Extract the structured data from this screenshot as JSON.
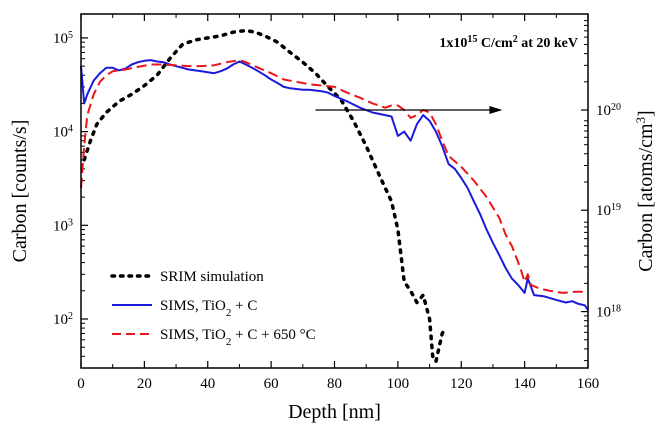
{
  "chart_data": {
    "type": "line",
    "xlabel": "Depth [nm]",
    "ylabel_left": "Carbon [counts/s]",
    "ylabel_left_parts": {
      "main": "Carbon [counts/s]"
    },
    "ylabel_right_parts": {
      "pre": "Carbon [atoms/cm",
      "sup": "3",
      "post": "]"
    },
    "annotation_parts": {
      "pre": "1x10",
      "sup1": "15",
      "mid": " C/cm",
      "sup2": "2",
      "post": " at 20 keV"
    },
    "xlim": [
      0,
      160
    ],
    "ylim_left": [
      30,
      180000
    ],
    "y_scale": "log",
    "x_ticks": [
      0,
      20,
      40,
      60,
      80,
      100,
      120,
      140,
      160
    ],
    "x_tick_labels": [
      "0",
      "20",
      "40",
      "60",
      "80",
      "100",
      "120",
      "140",
      "160"
    ],
    "y_left_ticks": [
      {
        "value": 100,
        "base": "10",
        "exp": "2"
      },
      {
        "value": 1000,
        "base": "10",
        "exp": "3"
      },
      {
        "value": 10000,
        "base": "10",
        "exp": "4"
      },
      {
        "value": 100000,
        "base": "10",
        "exp": "5"
      }
    ],
    "y_right_ticks": [
      {
        "value": 120,
        "base": "10",
        "exp": "18"
      },
      {
        "value": 1450,
        "base": "10",
        "exp": "19"
      },
      {
        "value": 17000,
        "base": "10",
        "exp": "20"
      }
    ],
    "arrow": {
      "x_from": 74,
      "x_to": 133,
      "y": 17000
    },
    "legend_position": "bottom-left",
    "series": [
      {
        "key": "srim",
        "legend": {
          "pre": "SRIM simulation"
        },
        "color": "#000000",
        "style": "dotted",
        "points": [
          [
            1,
            5000
          ],
          [
            3,
            8000
          ],
          [
            5,
            12000
          ],
          [
            8,
            16000
          ],
          [
            12,
            21000
          ],
          [
            16,
            25000
          ],
          [
            20,
            31000
          ],
          [
            24,
            40000
          ],
          [
            28,
            60000
          ],
          [
            32,
            85000
          ],
          [
            36,
            95000
          ],
          [
            40,
            100000
          ],
          [
            44,
            105000
          ],
          [
            48,
            115000
          ],
          [
            52,
            120000
          ],
          [
            55,
            115000
          ],
          [
            58,
            105000
          ],
          [
            62,
            90000
          ],
          [
            66,
            70000
          ],
          [
            70,
            55000
          ],
          [
            74,
            42000
          ],
          [
            78,
            30000
          ],
          [
            82,
            22000
          ],
          [
            86,
            13000
          ],
          [
            90,
            7000
          ],
          [
            94,
            3500
          ],
          [
            98,
            1800
          ],
          [
            100,
            900
          ],
          [
            102,
            250
          ],
          [
            104,
            200
          ],
          [
            106,
            150
          ],
          [
            108,
            180
          ],
          [
            110,
            100
          ],
          [
            111,
            40
          ],
          [
            112,
            35
          ],
          [
            113,
            50
          ],
          [
            114,
            70
          ],
          [
            115,
            80
          ]
        ]
      },
      {
        "key": "sims",
        "legend": {
          "pre": "SIMS, TiO",
          "sub": "2",
          "post": " + C"
        },
        "color": "#1a1adc",
        "style": "solid",
        "points": [
          [
            0,
            50000
          ],
          [
            1,
            20000
          ],
          [
            2,
            25000
          ],
          [
            4,
            35000
          ],
          [
            6,
            42000
          ],
          [
            8,
            48000
          ],
          [
            10,
            48000
          ],
          [
            12,
            45000
          ],
          [
            14,
            47000
          ],
          [
            16,
            52000
          ],
          [
            18,
            55000
          ],
          [
            20,
            57000
          ],
          [
            22,
            58000
          ],
          [
            24,
            56000
          ],
          [
            26,
            55000
          ],
          [
            28,
            52000
          ],
          [
            30,
            50000
          ],
          [
            32,
            48000
          ],
          [
            34,
            46000
          ],
          [
            36,
            45000
          ],
          [
            38,
            44000
          ],
          [
            40,
            43000
          ],
          [
            42,
            42000
          ],
          [
            44,
            44000
          ],
          [
            46,
            47000
          ],
          [
            48,
            52000
          ],
          [
            50,
            56000
          ],
          [
            52,
            52000
          ],
          [
            54,
            48000
          ],
          [
            56,
            44000
          ],
          [
            58,
            40000
          ],
          [
            60,
            36000
          ],
          [
            62,
            33000
          ],
          [
            64,
            30000
          ],
          [
            66,
            29000
          ],
          [
            68,
            28500
          ],
          [
            70,
            28000
          ],
          [
            72,
            28000
          ],
          [
            74,
            27500
          ],
          [
            76,
            27000
          ],
          [
            78,
            26000
          ],
          [
            80,
            24000
          ],
          [
            84,
            21000
          ],
          [
            88,
            18000
          ],
          [
            92,
            16000
          ],
          [
            96,
            15000
          ],
          [
            98,
            14500
          ],
          [
            100,
            9000
          ],
          [
            102,
            10000
          ],
          [
            104,
            8000
          ],
          [
            106,
            12000
          ],
          [
            108,
            15000
          ],
          [
            110,
            13000
          ],
          [
            112,
            10000
          ],
          [
            114,
            7000
          ],
          [
            116,
            4500
          ],
          [
            118,
            4000
          ],
          [
            120,
            3200
          ],
          [
            122,
            2500
          ],
          [
            124,
            1800
          ],
          [
            126,
            1300
          ],
          [
            128,
            900
          ],
          [
            130,
            650
          ],
          [
            132,
            480
          ],
          [
            134,
            350
          ],
          [
            136,
            270
          ],
          [
            138,
            230
          ],
          [
            140,
            190
          ],
          [
            141,
            270
          ],
          [
            142,
            220
          ],
          [
            143,
            180
          ],
          [
            146,
            175
          ],
          [
            150,
            160
          ],
          [
            153,
            150
          ],
          [
            155,
            155
          ],
          [
            157,
            145
          ],
          [
            159,
            140
          ],
          [
            160,
            125
          ]
        ]
      },
      {
        "key": "sims650",
        "legend": {
          "pre": "SIMS, TiO",
          "sub": "2",
          "post": " + C + 650 °C"
        },
        "color": "#e8151b",
        "style": "dashed",
        "points": [
          [
            0,
            2500
          ],
          [
            1,
            7000
          ],
          [
            2,
            15000
          ],
          [
            4,
            25000
          ],
          [
            6,
            34000
          ],
          [
            8,
            40000
          ],
          [
            10,
            44000
          ],
          [
            14,
            46000
          ],
          [
            18,
            49000
          ],
          [
            22,
            52000
          ],
          [
            26,
            52000
          ],
          [
            30,
            51000
          ],
          [
            34,
            50000
          ],
          [
            38,
            50000
          ],
          [
            42,
            51000
          ],
          [
            46,
            55000
          ],
          [
            50,
            58000
          ],
          [
            52,
            55000
          ],
          [
            56,
            48000
          ],
          [
            60,
            42000
          ],
          [
            64,
            36000
          ],
          [
            68,
            34000
          ],
          [
            72,
            32000
          ],
          [
            76,
            31000
          ],
          [
            80,
            30000
          ],
          [
            84,
            26000
          ],
          [
            88,
            23000
          ],
          [
            92,
            20000
          ],
          [
            96,
            18000
          ],
          [
            98,
            19000
          ],
          [
            100,
            19000
          ],
          [
            102,
            17000
          ],
          [
            104,
            14000
          ],
          [
            106,
            15000
          ],
          [
            108,
            17000
          ],
          [
            110,
            16000
          ],
          [
            112,
            12000
          ],
          [
            114,
            8000
          ],
          [
            116,
            5500
          ],
          [
            120,
            4200
          ],
          [
            124,
            3000
          ],
          [
            128,
            2000
          ],
          [
            132,
            1200
          ],
          [
            134,
            800
          ],
          [
            136,
            600
          ],
          [
            138,
            400
          ],
          [
            139,
            320
          ],
          [
            140,
            250
          ],
          [
            141,
            300
          ],
          [
            142,
            230
          ],
          [
            145,
            210
          ],
          [
            148,
            200
          ],
          [
            152,
            190
          ],
          [
            156,
            195
          ],
          [
            160,
            195
          ]
        ]
      }
    ]
  }
}
